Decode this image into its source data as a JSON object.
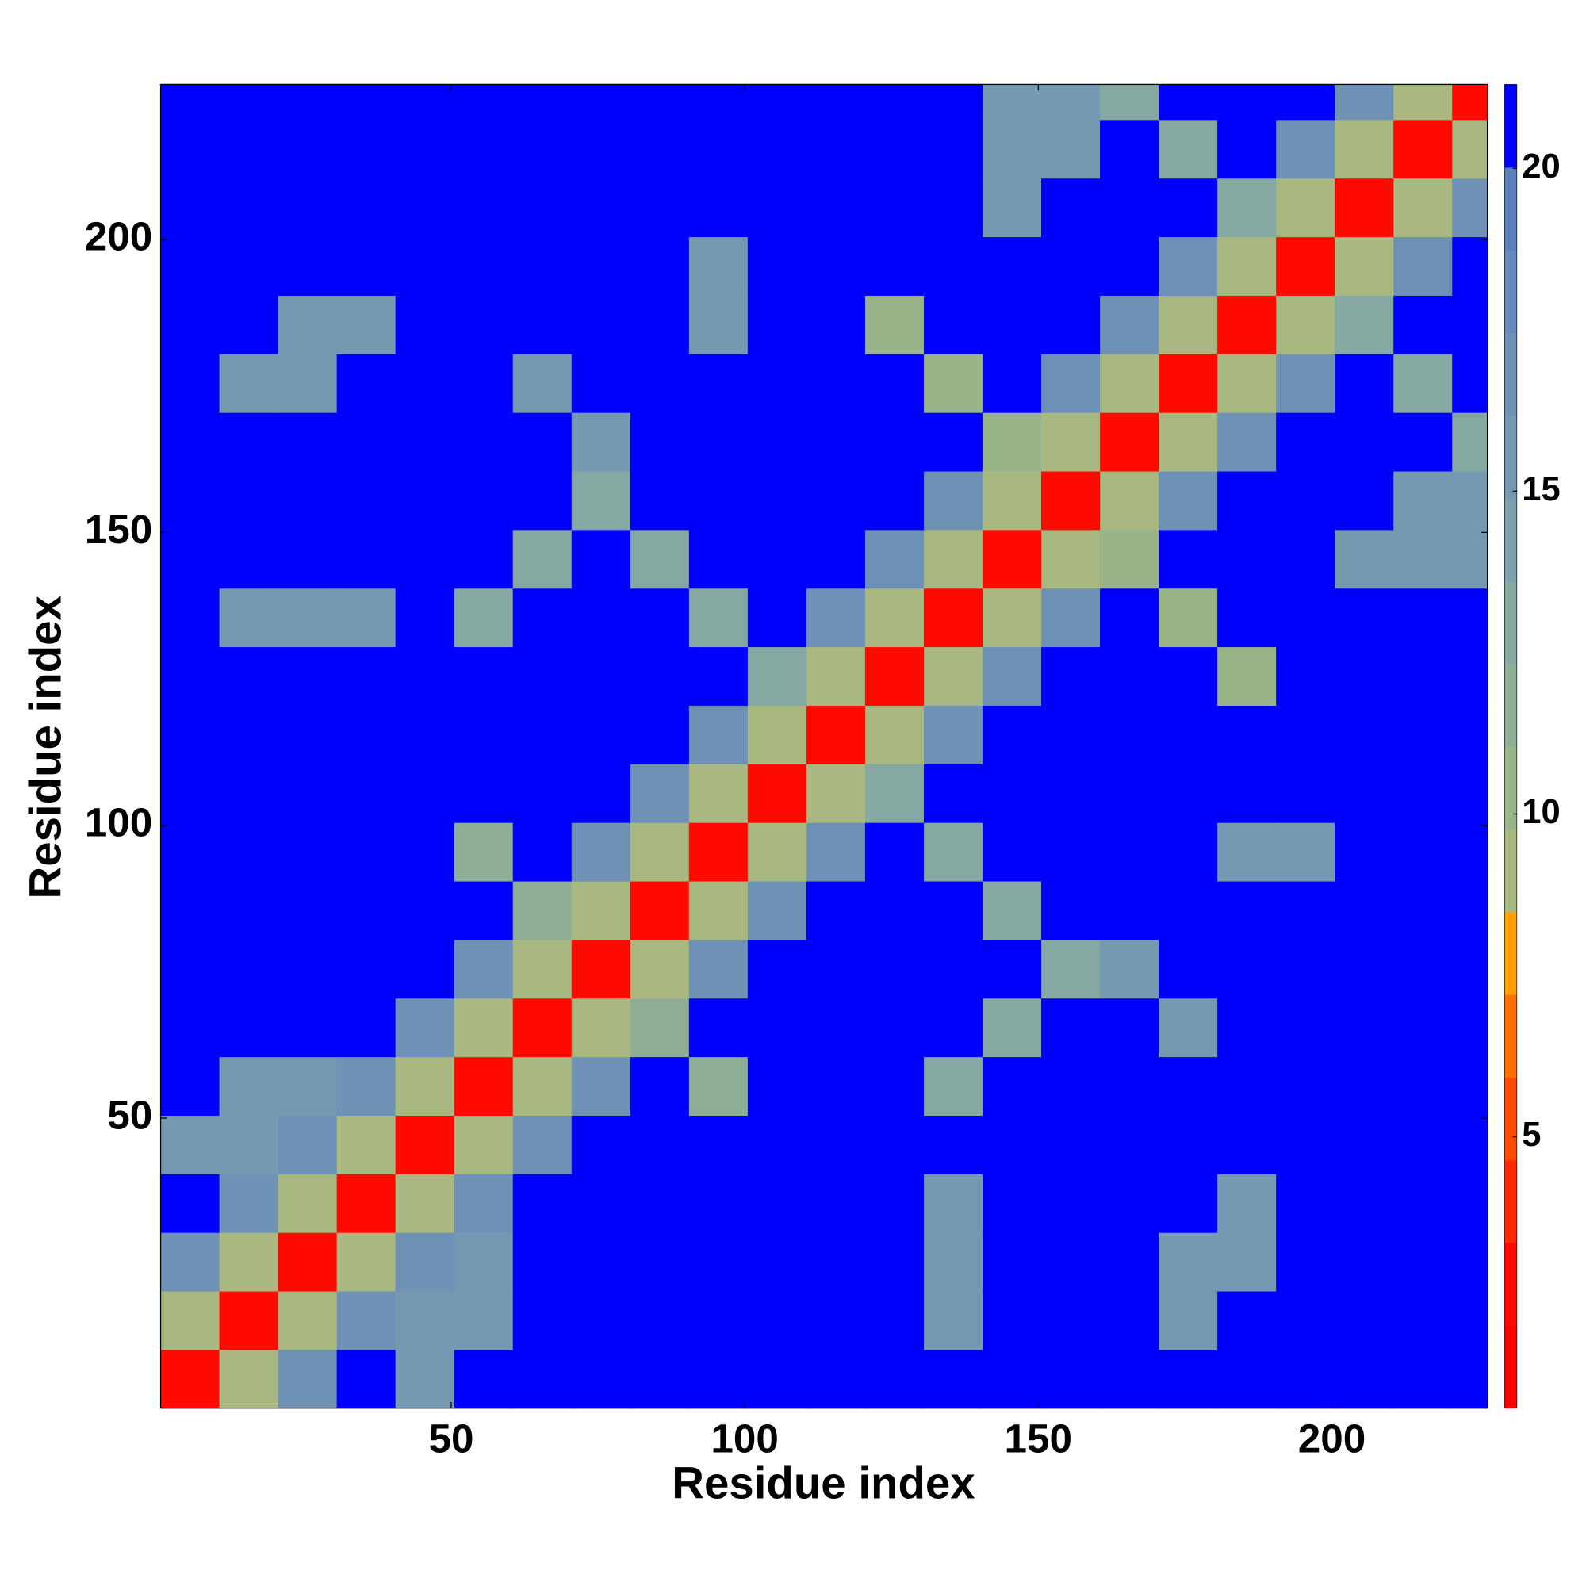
{
  "chart_data": {
    "type": "heatmap",
    "xlabel": "Residue index",
    "ylabel": "Residue index",
    "xlim": [
      0.5,
      226.5
    ],
    "ylim": [
      0.5,
      226.5
    ],
    "xticks": [
      50,
      100,
      150,
      200
    ],
    "yticks": [
      50,
      100,
      150,
      200
    ],
    "xbins": [
      0.5,
      10.5,
      20.5,
      30.5,
      40.5,
      50.5,
      60.5,
      70.5,
      80.5,
      90.5,
      100.5,
      110.5,
      120.5,
      130.5,
      140.5,
      150.5,
      160.5,
      170.5,
      180.5,
      190.5,
      200.5,
      210.5,
      220.5,
      226.5
    ],
    "ybins": [
      0.5,
      10.5,
      20.5,
      30.5,
      40.5,
      50.5,
      60.5,
      70.5,
      80.5,
      90.5,
      100.5,
      110.5,
      120.5,
      130.5,
      140.5,
      150.5,
      160.5,
      170.5,
      180.5,
      190.5,
      200.5,
      210.5,
      220.5,
      226.5
    ],
    "z": [
      [
        3,
        9,
        17,
        21,
        15,
        21,
        21,
        21,
        21,
        21,
        21,
        21,
        21,
        21,
        21,
        21,
        21,
        21,
        21,
        21,
        21,
        21,
        21
      ],
      [
        9,
        3,
        9,
        17,
        15,
        15,
        21,
        21,
        21,
        21,
        21,
        21,
        21,
        15,
        21,
        21,
        21,
        16,
        21,
        21,
        21,
        21,
        21
      ],
      [
        17,
        9,
        3,
        9,
        17,
        15,
        21,
        21,
        21,
        21,
        21,
        21,
        21,
        15,
        21,
        21,
        21,
        16,
        16,
        21,
        21,
        21,
        21
      ],
      [
        21,
        17,
        9,
        3,
        9,
        17,
        21,
        21,
        21,
        21,
        21,
        21,
        21,
        15,
        21,
        21,
        21,
        21,
        16,
        21,
        21,
        21,
        21
      ],
      [
        15,
        15,
        17,
        9,
        3,
        9,
        17,
        21,
        21,
        21,
        21,
        21,
        21,
        21,
        21,
        21,
        21,
        21,
        21,
        21,
        21,
        21,
        21
      ],
      [
        21,
        15,
        15,
        17,
        9,
        3,
        9,
        17,
        21,
        12,
        21,
        21,
        21,
        13,
        21,
        21,
        21,
        21,
        21,
        21,
        21,
        21,
        21
      ],
      [
        21,
        21,
        21,
        21,
        17,
        9,
        3,
        9,
        12,
        21,
        21,
        21,
        21,
        21,
        13,
        21,
        21,
        15,
        21,
        21,
        21,
        21,
        21
      ],
      [
        21,
        21,
        21,
        21,
        21,
        17,
        9,
        3,
        9,
        17,
        21,
        21,
        21,
        21,
        21,
        13,
        15,
        21,
        21,
        21,
        21,
        21,
        21
      ],
      [
        21,
        21,
        21,
        21,
        21,
        21,
        12,
        9,
        3,
        9,
        17,
        21,
        21,
        21,
        13,
        21,
        21,
        21,
        21,
        21,
        21,
        21,
        21
      ],
      [
        21,
        21,
        21,
        21,
        21,
        12,
        21,
        17,
        9,
        3,
        9,
        17,
        21,
        13,
        21,
        21,
        21,
        21,
        15,
        15,
        21,
        21,
        21
      ],
      [
        21,
        21,
        21,
        21,
        21,
        21,
        21,
        21,
        17,
        9,
        3,
        9,
        13,
        21,
        21,
        21,
        21,
        21,
        21,
        21,
        21,
        21,
        21
      ],
      [
        21,
        21,
        21,
        21,
        21,
        21,
        21,
        21,
        21,
        17,
        9,
        3,
        9,
        17,
        21,
        21,
        21,
        21,
        21,
        21,
        21,
        21,
        21
      ],
      [
        21,
        21,
        21,
        21,
        21,
        21,
        21,
        21,
        21,
        21,
        13,
        9,
        3,
        9,
        17,
        21,
        21,
        21,
        11,
        21,
        21,
        21,
        21
      ],
      [
        21,
        15,
        15,
        15,
        21,
        13,
        21,
        21,
        21,
        13,
        21,
        17,
        9,
        3,
        9,
        17,
        21,
        11,
        21,
        21,
        21,
        21,
        21
      ],
      [
        21,
        21,
        21,
        21,
        21,
        21,
        13,
        21,
        13,
        21,
        21,
        21,
        17,
        9,
        3,
        9,
        11,
        21,
        21,
        21,
        15,
        15,
        15
      ],
      [
        21,
        21,
        21,
        21,
        21,
        21,
        21,
        13,
        21,
        21,
        21,
        21,
        21,
        17,
        9,
        3,
        9,
        17,
        21,
        21,
        21,
        15,
        15
      ],
      [
        21,
        21,
        21,
        21,
        21,
        21,
        21,
        15,
        21,
        21,
        21,
        21,
        21,
        21,
        11,
        9,
        3,
        9,
        17,
        21,
        21,
        21,
        13
      ],
      [
        21,
        16,
        16,
        21,
        21,
        21,
        15,
        21,
        21,
        21,
        21,
        21,
        21,
        11,
        21,
        17,
        9,
        3,
        9,
        17,
        21,
        13,
        21
      ],
      [
        21,
        21,
        16,
        16,
        21,
        21,
        21,
        21,
        21,
        15,
        21,
        21,
        11,
        21,
        21,
        21,
        17,
        9,
        3,
        9,
        13,
        21,
        21
      ],
      [
        21,
        21,
        21,
        21,
        21,
        21,
        21,
        21,
        21,
        15,
        21,
        21,
        21,
        21,
        21,
        21,
        21,
        17,
        9,
        3,
        9,
        17,
        21
      ],
      [
        21,
        21,
        21,
        21,
        21,
        21,
        21,
        21,
        21,
        21,
        21,
        21,
        21,
        21,
        15,
        21,
        21,
        21,
        13,
        9,
        3,
        9,
        17
      ],
      [
        21,
        21,
        21,
        21,
        21,
        21,
        21,
        21,
        21,
        21,
        21,
        21,
        21,
        21,
        15,
        15,
        21,
        13,
        21,
        17,
        9,
        3,
        9
      ],
      [
        21,
        21,
        21,
        21,
        21,
        21,
        21,
        21,
        21,
        21,
        21,
        21,
        21,
        21,
        15,
        15,
        13,
        21,
        21,
        21,
        17,
        9,
        3
      ]
    ],
    "zlim": [
      0.8,
      21.3
    ],
    "zticks": [
      5,
      10,
      15,
      20
    ],
    "colormap": [
      "#ff0000",
      "#ff0a00",
      "#ff2800",
      "#ff4a00",
      "#ff7000",
      "#ffa000",
      "#a8b880",
      "#9ab48a",
      "#8fae96",
      "#86a8a2",
      "#7ea0ac",
      "#7699b2",
      "#6e91b6",
      "#6689ba",
      "#5a80bc",
      "#0000ff"
    ]
  }
}
